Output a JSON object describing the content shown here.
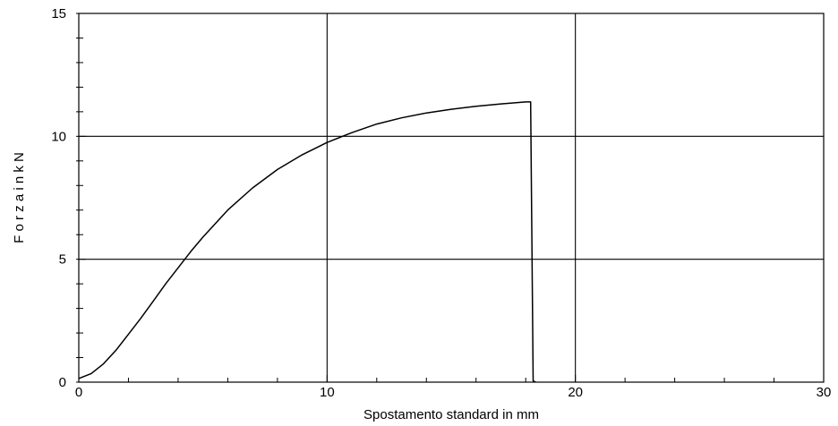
{
  "chart_data": {
    "type": "line",
    "title": "",
    "xlabel": "Spostamento standard in mm",
    "ylabel": "F o r z a   i n   k N",
    "xlim": [
      0,
      30
    ],
    "ylim": [
      0,
      15
    ],
    "x_major_ticks": [
      0,
      10,
      20,
      30
    ],
    "y_major_ticks": [
      0,
      5,
      10,
      15
    ],
    "x_minor_step": 2,
    "y_minor_step": 1,
    "grid": true,
    "legend": "none",
    "line_color": "#000000",
    "series": [
      {
        "x": [
          0,
          0.5,
          1,
          1.5,
          2,
          2.5,
          3,
          3.5,
          4,
          4.5,
          5,
          6,
          7,
          8,
          9,
          10,
          11,
          12,
          13,
          14,
          15,
          16,
          17,
          18,
          18.2,
          18.3,
          18.4
        ],
        "y": [
          0.15,
          0.35,
          0.75,
          1.3,
          1.95,
          2.6,
          3.3,
          4.0,
          4.65,
          5.3,
          5.9,
          7.0,
          7.9,
          8.65,
          9.25,
          9.75,
          10.15,
          10.5,
          10.75,
          10.95,
          11.1,
          11.22,
          11.32,
          11.4,
          11.4,
          0.05,
          0.0
        ]
      }
    ]
  }
}
